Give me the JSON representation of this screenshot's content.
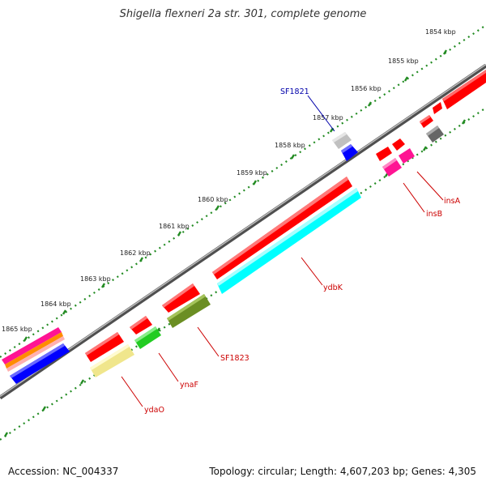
{
  "title": "Shigella flexneri 2a str. 301, complete genome",
  "accession": "Accession: NC_004337",
  "topology": "Topology: circular; Length: 4,607,203 bp; Genes: 4,305",
  "kbp_labels": [
    "1854 kbp",
    "1855 kbp",
    "1856 kbp",
    "1857 kbp",
    "1858 kbp",
    "1859 kbp",
    "1860 kbp",
    "1861 kbp",
    "1862 kbp",
    "1863 kbp",
    "1864 kbp",
    "1865 kbp"
  ],
  "gene_labels": {
    "SF1821": "SF1821",
    "insA": "insA",
    "insB": "insB",
    "ydbK": "ydbK",
    "SF1823": "SF1823",
    "ynaF": "ynaF",
    "ydaO": "ydaO"
  },
  "colors": {
    "backbone": "#8c8c8c",
    "ruler": "#228b22",
    "label_red": "#cc0000",
    "label_blue": "#0000aa",
    "red": "#ff0000",
    "cyan": "#00ffff",
    "blue": "#0000ff",
    "magenta": "#ff1493",
    "green": "#33cc33",
    "olive": "#6b8e23",
    "khaki": "#f0e68c",
    "gray": "#777777",
    "silver": "#c0c0c0",
    "orange": "#ff8c00"
  }
}
